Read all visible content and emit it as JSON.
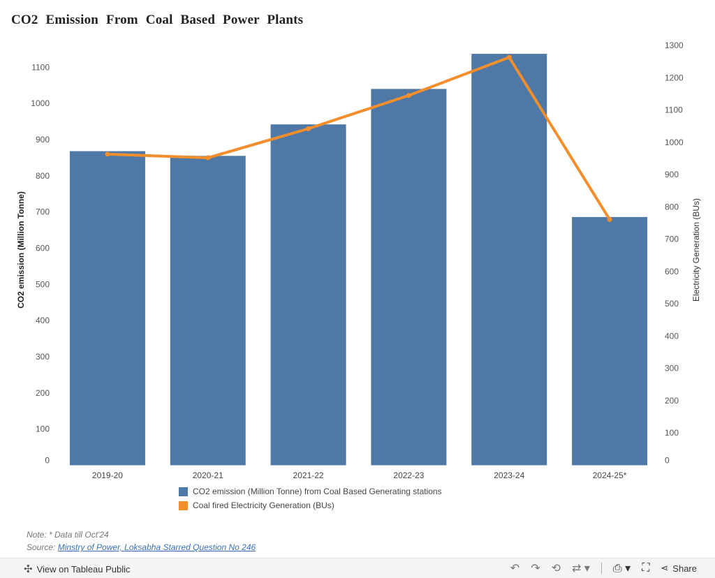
{
  "title": "CO2  Emission  From  Coal  Based  Power  Plants",
  "chart_data": {
    "type": "bar",
    "categories": [
      "2019-20",
      "2020-21",
      "2021-22",
      "2022-23",
      "2023-24",
      "2024-25*"
    ],
    "series": [
      {
        "name": "CO2 emission (Million Tonne) from Coal Based Generating stations",
        "type": "bar",
        "axis": "left",
        "color": "#4e79a7",
        "values": [
          868,
          855,
          942,
          1040,
          1137,
          686
        ]
      },
      {
        "name": "Coal fired Electricity Generation (BUs)",
        "type": "line",
        "axis": "right",
        "color": "#f28e2b",
        "values": [
          963,
          952,
          1042,
          1145,
          1263,
          761
        ]
      }
    ],
    "ylabel": "CO2 emission (Million Tonne)",
    "y2label": "Electricity Generation (BUs)",
    "ylim": [
      0,
      1170
    ],
    "y2lim": [
      0,
      1300
    ],
    "yticks": [
      0,
      100,
      200,
      300,
      400,
      500,
      600,
      700,
      800,
      900,
      1000,
      1100
    ],
    "y2ticks": [
      0,
      100,
      200,
      300,
      400,
      500,
      600,
      700,
      800,
      900,
      1000,
      1100,
      1200,
      1300
    ],
    "grid": false,
    "legend": "bottom"
  },
  "legend": {
    "items": [
      {
        "label": "CO2 emission (Million Tonne) from Coal Based Generating stations",
        "color": "#4e79a7"
      },
      {
        "label": "Coal fired Electricity Generation (BUs)",
        "color": "#f28e2b"
      }
    ]
  },
  "notes": {
    "note": "Note: * Data till Oct'24",
    "source_prefix": "Source: ",
    "source_link": "Minstry of Power, Loksabha Starred Question No 246"
  },
  "footer": {
    "view_label": "View on Tableau Public",
    "share_label": "Share",
    "icons": [
      "tableau-icon",
      "undo-icon",
      "redo-icon",
      "revert-icon",
      "refresh-icon",
      "download-icon",
      "fullscreen-icon",
      "share-icon"
    ]
  }
}
